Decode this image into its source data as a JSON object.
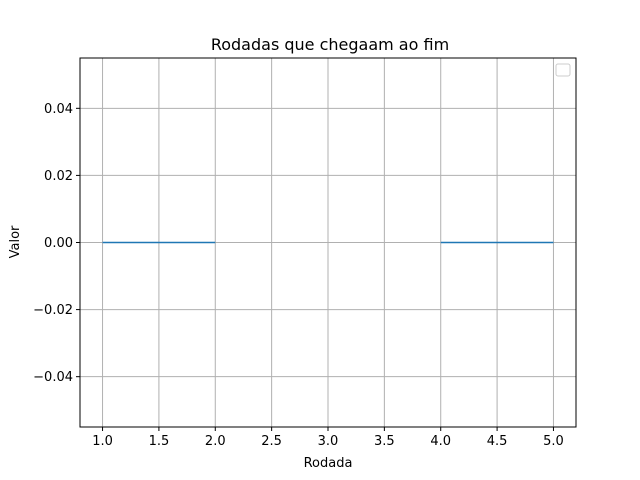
{
  "chart_data": {
    "type": "line",
    "title": "Rodadas que chegaam ao fim",
    "xlabel": "Rodada",
    "ylabel": "Valor",
    "xlim": [
      0.8,
      5.2
    ],
    "ylim": [
      -0.055,
      0.055
    ],
    "grid": true,
    "legend": "top-right",
    "x_ticks": [
      "1.0",
      "1.5",
      "2.0",
      "2.5",
      "3.0",
      "3.5",
      "4.0",
      "4.5",
      "5.0"
    ],
    "y_ticks": [
      "0.04",
      "0.02",
      "0.00",
      "−0.02",
      "−0.04"
    ],
    "series": [
      {
        "x": [
          1,
          2,
          null,
          4,
          5
        ],
        "y": [
          0,
          0,
          null,
          0,
          0
        ],
        "color": "#1f77b4"
      }
    ]
  }
}
